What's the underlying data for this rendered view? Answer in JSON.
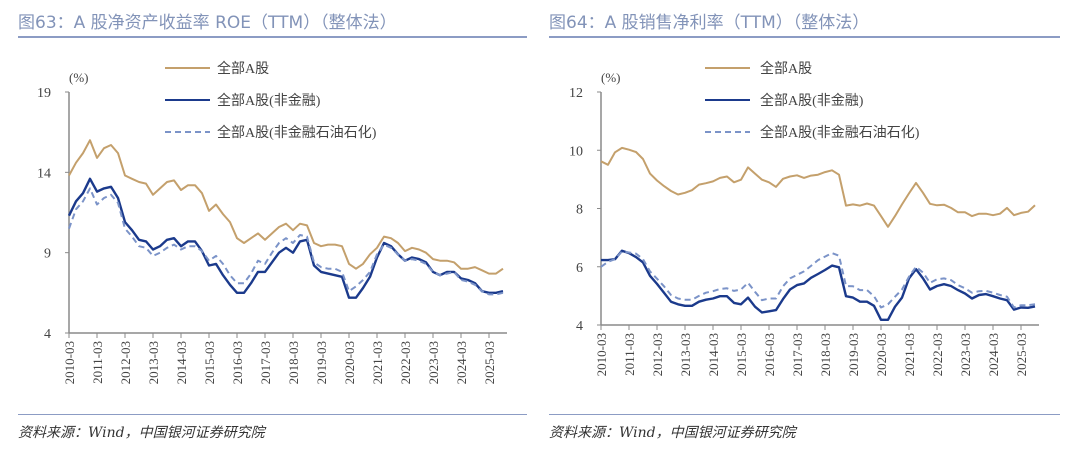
{
  "colors": {
    "all": "#c4a06c",
    "nonfin": "#1b3a8c",
    "nonfin_ex_oil": "#7b93c8",
    "axis": "#8a8a8a"
  },
  "chart_data": [
    {
      "type": "line",
      "title": "图63：A 股净资产收益率 ROE（TTM）（整体法）",
      "ylabel": "(%)",
      "ylim": [
        4,
        19
      ],
      "yticks": [
        4,
        9,
        14,
        19
      ],
      "x_start": "2010-03",
      "x_freq": "quarterly",
      "xtick_labels": [
        "2010-03",
        "2011-03",
        "2012-03",
        "2013-03",
        "2014-03",
        "2015-03",
        "2016-03",
        "2017-03",
        "2018-03",
        "2019-03",
        "2020-03",
        "2021-03",
        "2022-03",
        "2023-03",
        "2024-03",
        "2025-03"
      ],
      "legend_position": "top",
      "source": "资料来源：Wind，中国银河证券研究院",
      "series": [
        {
          "name": "全部A股",
          "style": "solid",
          "values": [
            13.8,
            14.6,
            15.2,
            16.0,
            14.9,
            15.5,
            15.7,
            15.2,
            13.8,
            13.6,
            13.4,
            13.3,
            12.6,
            13.0,
            13.4,
            13.5,
            12.9,
            13.2,
            13.2,
            12.7,
            11.6,
            12.0,
            11.4,
            10.9,
            9.9,
            9.6,
            9.9,
            10.2,
            9.8,
            10.2,
            10.6,
            10.8,
            10.4,
            10.8,
            10.7,
            9.6,
            9.4,
            9.5,
            9.5,
            9.4,
            8.3,
            8.0,
            8.3,
            8.9,
            9.3,
            10.0,
            9.9,
            9.6,
            9.1,
            9.3,
            9.2,
            9.0,
            8.6,
            8.5,
            8.5,
            8.4,
            8.0,
            8.0,
            8.1,
            7.9,
            7.7,
            7.7,
            8.0
          ]
        },
        {
          "name": "全部A股(非金融)",
          "style": "solid",
          "values": [
            11.3,
            12.2,
            12.7,
            13.6,
            12.8,
            13.0,
            13.1,
            12.4,
            10.9,
            10.4,
            9.8,
            9.7,
            9.2,
            9.4,
            9.8,
            9.9,
            9.4,
            9.7,
            9.7,
            9.1,
            8.2,
            8.3,
            7.6,
            7.0,
            6.5,
            6.5,
            7.1,
            7.8,
            7.8,
            8.4,
            9.0,
            9.3,
            9.0,
            9.7,
            9.8,
            8.2,
            7.8,
            7.7,
            7.6,
            7.5,
            6.2,
            6.2,
            6.8,
            7.5,
            8.7,
            9.6,
            9.4,
            8.9,
            8.5,
            8.7,
            8.6,
            8.4,
            7.8,
            7.6,
            7.8,
            7.8,
            7.4,
            7.3,
            7.1,
            6.6,
            6.5,
            6.5,
            6.6
          ]
        },
        {
          "name": "全部A股(非金融石油石化)",
          "style": "dashed",
          "values": [
            10.5,
            11.7,
            12.2,
            13.0,
            12.0,
            12.4,
            12.6,
            12.1,
            10.5,
            10.0,
            9.4,
            9.3,
            8.8,
            9.0,
            9.3,
            9.5,
            9.2,
            9.4,
            9.4,
            9.1,
            8.5,
            8.8,
            8.3,
            7.6,
            7.1,
            7.1,
            7.7,
            8.5,
            8.3,
            9.0,
            9.6,
            9.9,
            9.6,
            10.1,
            10.0,
            8.4,
            8.1,
            8.0,
            8.0,
            7.8,
            6.6,
            6.9,
            7.3,
            7.8,
            8.9,
            9.5,
            9.3,
            8.9,
            8.5,
            8.6,
            8.5,
            8.3,
            7.8,
            7.6,
            7.7,
            7.8,
            7.3,
            7.2,
            7.0,
            6.6,
            6.4,
            6.4,
            6.5
          ]
        }
      ]
    },
    {
      "type": "line",
      "title": "图64：A 股销售净利率（TTM）（整体法）",
      "ylabel": "(%)",
      "ylim": [
        4,
        12
      ],
      "yticks": [
        4,
        6,
        8,
        10,
        12
      ],
      "x_start": "2010-03",
      "x_freq": "quarterly",
      "xtick_labels": [
        "2010-03",
        "2011-03",
        "2012-03",
        "2013-03",
        "2014-03",
        "2015-03",
        "2016-03",
        "2017-03",
        "2018-03",
        "2019-03",
        "2020-03",
        "2021-03",
        "2022-03",
        "2023-03",
        "2024-03",
        "2025-03"
      ],
      "legend_position": "top",
      "source": "资料来源：Wind，中国银河证券研究院",
      "series": [
        {
          "name": "全部A股",
          "style": "solid",
          "values": [
            9.62,
            9.5,
            9.93,
            10.08,
            10.02,
            9.94,
            9.7,
            9.2,
            8.96,
            8.77,
            8.6,
            8.48,
            8.54,
            8.63,
            8.82,
            8.87,
            8.93,
            9.05,
            9.1,
            8.9,
            8.99,
            9.41,
            9.2,
            8.99,
            8.9,
            8.74,
            9.02,
            9.1,
            9.14,
            9.05,
            9.13,
            9.16,
            9.25,
            9.31,
            9.16,
            8.1,
            8.14,
            8.1,
            8.17,
            8.1,
            7.74,
            7.37,
            7.74,
            8.14,
            8.52,
            8.88,
            8.54,
            8.16,
            8.11,
            8.13,
            8.02,
            7.87,
            7.87,
            7.74,
            7.82,
            7.82,
            7.77,
            7.82,
            8.02,
            7.77,
            7.85,
            7.89,
            8.11
          ]
        },
        {
          "name": "全部A股(非金融)",
          "style": "solid",
          "values": [
            6.23,
            6.23,
            6.26,
            6.55,
            6.47,
            6.33,
            6.15,
            5.69,
            5.41,
            5.11,
            4.8,
            4.71,
            4.66,
            4.66,
            4.8,
            4.87,
            4.91,
            4.99,
            4.99,
            4.76,
            4.71,
            4.94,
            4.63,
            4.43,
            4.47,
            4.51,
            4.89,
            5.22,
            5.37,
            5.43,
            5.62,
            5.75,
            5.89,
            6.04,
            5.98,
            4.99,
            4.94,
            4.8,
            4.8,
            4.66,
            4.18,
            4.18,
            4.63,
            4.94,
            5.6,
            5.92,
            5.6,
            5.22,
            5.34,
            5.4,
            5.34,
            5.2,
            5.08,
            4.91,
            5.03,
            5.06,
            4.99,
            4.91,
            4.85,
            4.53,
            4.6,
            4.59,
            4.64
          ]
        },
        {
          "name": "全部A股(非金融石油石化)",
          "style": "dashed",
          "values": [
            6.0,
            6.17,
            6.26,
            6.53,
            6.49,
            6.45,
            6.26,
            5.84,
            5.59,
            5.33,
            5.03,
            4.91,
            4.87,
            4.87,
            5.0,
            5.11,
            5.16,
            5.24,
            5.26,
            5.17,
            5.22,
            5.45,
            5.14,
            4.85,
            4.91,
            4.91,
            5.33,
            5.6,
            5.72,
            5.84,
            6.03,
            6.23,
            6.35,
            6.47,
            6.38,
            5.34,
            5.33,
            5.2,
            5.2,
            4.99,
            4.6,
            4.71,
            4.97,
            5.22,
            5.66,
            6.0,
            5.8,
            5.45,
            5.57,
            5.6,
            5.54,
            5.37,
            5.26,
            5.11,
            5.16,
            5.17,
            5.11,
            5.03,
            4.97,
            4.6,
            4.68,
            4.68,
            4.71
          ]
        }
      ]
    }
  ]
}
